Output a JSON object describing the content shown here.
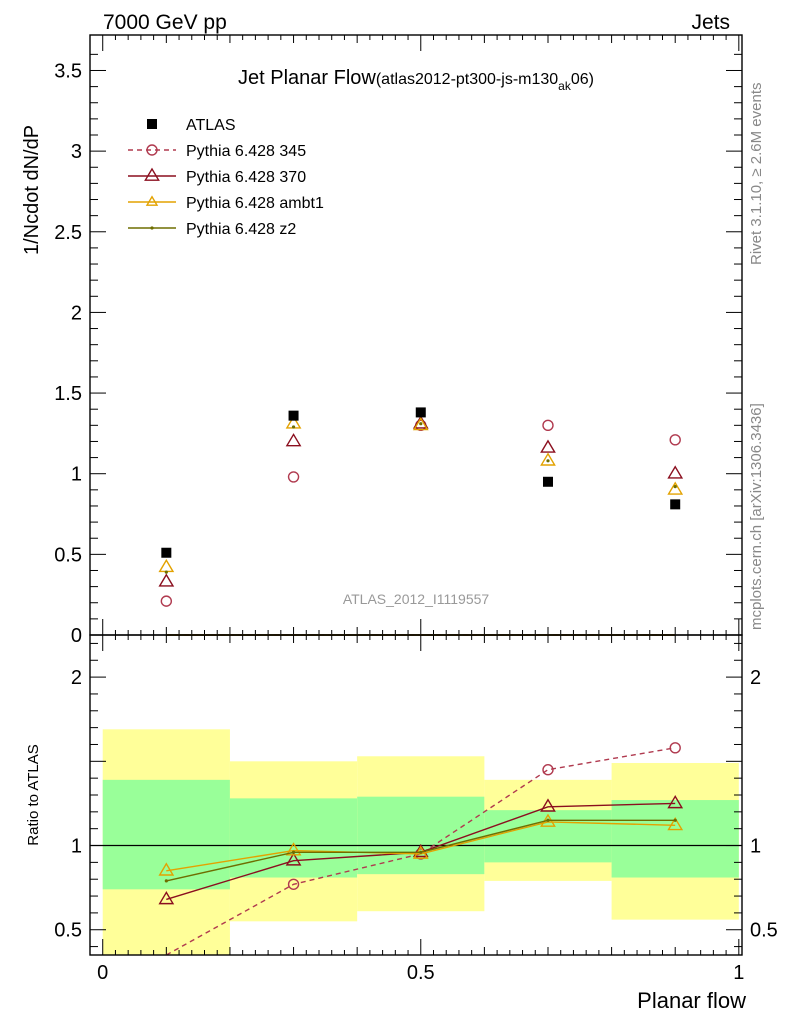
{
  "header": {
    "left": "7000 GeV pp",
    "right": "Jets"
  },
  "side_labels": {
    "rivet": "Rivet 3.1.10, ≥ 2.6M events",
    "mcplots": "mcplots.cern.ch [arXiv:1306.3436]"
  },
  "watermark": "ATLAS_2012_I1119557",
  "chart_data": [
    {
      "type": "line",
      "title": "Jet Planar Flow",
      "title_sub_pre": "(atlas2012-pt300-js-m130",
      "title_sub_sub": "ak",
      "title_sub_post": "06)",
      "xlabel": "",
      "ylabel": "1/Ncdot dN/dP",
      "xlim": [
        -0.02,
        1.005
      ],
      "ylim": [
        0,
        3.72
      ],
      "yticks": [
        {
          "v": 0,
          "label": "0"
        },
        {
          "v": 0.5,
          "label": "0.5"
        },
        {
          "v": 1,
          "label": "1"
        },
        {
          "v": 1.5,
          "label": "1.5"
        },
        {
          "v": 2,
          "label": "2"
        },
        {
          "v": 2.5,
          "label": "2.5"
        },
        {
          "v": 3,
          "label": "3"
        },
        {
          "v": 3.5,
          "label": "3.5"
        }
      ],
      "x": [
        0.1,
        0.3,
        0.5,
        0.7,
        0.9
      ],
      "data": {
        "name": "ATLAS",
        "values": [
          0.51,
          1.36,
          1.38,
          0.95,
          0.81
        ],
        "color": "#000000"
      },
      "series": [
        {
          "name": "Pythia 6.428 345",
          "values": [
            0.21,
            0.98,
            1.3,
            1.3,
            1.21
          ],
          "color": "#b03a4f",
          "marker": "circle",
          "dash": true
        },
        {
          "name": "Pythia 6.428 370",
          "values": [
            0.33,
            1.2,
            1.31,
            1.16,
            1.0
          ],
          "color": "#8b0f1f",
          "marker": "triangle",
          "dash": false
        },
        {
          "name": "Pythia 6.428 ambt1",
          "values": [
            0.42,
            1.31,
            1.3,
            1.08,
            0.9
          ],
          "color": "#e3a200",
          "marker": "triangle",
          "dash": false
        },
        {
          "name": "Pythia 6.428 z2",
          "values": [
            0.39,
            1.29,
            1.31,
            1.08,
            0.92
          ],
          "color": "#6e6e00",
          "marker": "dot",
          "dash": false
        }
      ]
    },
    {
      "type": "line",
      "ylabel": "Ratio to ATLAS",
      "xlabel": "Planar flow",
      "xlim": [
        -0.02,
        1.005
      ],
      "ylim": [
        0.35,
        2.25
      ],
      "xticks": [
        {
          "v": 0,
          "label": "0"
        },
        {
          "v": 0.5,
          "label": "0.5"
        },
        {
          "v": 1,
          "label": "1"
        }
      ],
      "yticks": [
        {
          "v": 0.5,
          "label": "0.5"
        },
        {
          "v": 1,
          "label": "1"
        },
        {
          "v": 2,
          "label": "2"
        }
      ],
      "bins": [
        {
          "x0": 0.0,
          "x1": 0.2,
          "g": [
            0.74,
            1.39
          ],
          "y": [
            0.35,
            1.69
          ]
        },
        {
          "x0": 0.2,
          "x1": 0.4,
          "g": [
            0.81,
            1.28
          ],
          "y": [
            0.55,
            1.5
          ]
        },
        {
          "x0": 0.4,
          "x1": 0.6,
          "g": [
            0.83,
            1.29
          ],
          "y": [
            0.61,
            1.53
          ]
        },
        {
          "x0": 0.6,
          "x1": 0.8,
          "g": [
            0.9,
            1.21
          ],
          "y": [
            0.79,
            1.39
          ]
        },
        {
          "x0": 0.8,
          "x1": 1.0,
          "g": [
            0.81,
            1.27
          ],
          "y": [
            0.56,
            1.49
          ]
        }
      ],
      "x": [
        0.1,
        0.3,
        0.5,
        0.7,
        0.9
      ],
      "series": [
        {
          "name": "Pythia 6.428 345",
          "values": [
            0.34,
            0.77,
            0.95,
            1.45,
            1.58
          ],
          "color": "#b03a4f",
          "marker": "circle",
          "dash": true
        },
        {
          "name": "Pythia 6.428 370",
          "values": [
            0.68,
            0.91,
            0.96,
            1.23,
            1.25
          ],
          "color": "#8b0f1f",
          "marker": "triangle",
          "dash": false
        },
        {
          "name": "Pythia 6.428 ambt1",
          "values": [
            0.85,
            0.97,
            0.95,
            1.14,
            1.12
          ],
          "color": "#e3a200",
          "marker": "triangle",
          "dash": false
        },
        {
          "name": "Pythia 6.428 z2",
          "values": [
            0.79,
            0.96,
            0.96,
            1.15,
            1.15
          ],
          "color": "#6e6e00",
          "marker": "dot",
          "dash": false
        }
      ]
    }
  ]
}
